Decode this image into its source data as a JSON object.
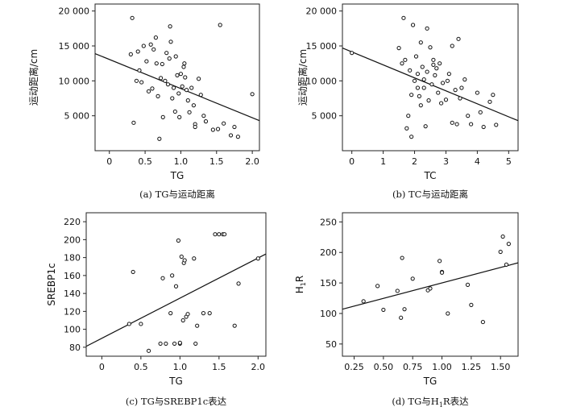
{
  "chart_data": [
    {
      "id": "a",
      "type": "scatter",
      "caption": "(a)  TG与运动距离",
      "xlabel": "TG",
      "ylabel": "运动距离/cm",
      "xlim": [
        -0.2,
        2.1
      ],
      "ylim": [
        0,
        21000
      ],
      "xticks": [
        0,
        0.5,
        1.0,
        1.5,
        2.0
      ],
      "xtick_labels": [
        "0",
        "0.5",
        "1.0",
        "1.5",
        "2.0"
      ],
      "yticks": [
        5000,
        10000,
        15000,
        20000
      ],
      "ytick_labels": [
        "5 000",
        "10 000",
        "15 000",
        "20 000"
      ],
      "grid": false,
      "points": [
        [
          0.32,
          19000
        ],
        [
          0.34,
          4000
        ],
        [
          0.3,
          13800
        ],
        [
          0.38,
          10000
        ],
        [
          0.42,
          11500
        ],
        [
          0.45,
          9800
        ],
        [
          0.4,
          14200
        ],
        [
          0.48,
          15000
        ],
        [
          0.52,
          12800
        ],
        [
          0.55,
          8500
        ],
        [
          0.58,
          15200
        ],
        [
          0.6,
          8900
        ],
        [
          0.62,
          14500
        ],
        [
          0.65,
          16200
        ],
        [
          0.66,
          12500
        ],
        [
          0.68,
          7800
        ],
        [
          0.7,
          1700
        ],
        [
          0.72,
          10400
        ],
        [
          0.74,
          12400
        ],
        [
          0.75,
          4800
        ],
        [
          0.78,
          10000
        ],
        [
          0.8,
          14000
        ],
        [
          0.82,
          9500
        ],
        [
          0.84,
          13200
        ],
        [
          0.85,
          17800
        ],
        [
          0.86,
          15600
        ],
        [
          0.88,
          7500
        ],
        [
          0.9,
          9000
        ],
        [
          0.92,
          5600
        ],
        [
          0.93,
          13500
        ],
        [
          0.95,
          10800
        ],
        [
          0.97,
          8200
        ],
        [
          0.98,
          4800
        ],
        [
          1.0,
          11000
        ],
        [
          1.02,
          9200
        ],
        [
          1.04,
          12000
        ],
        [
          1.05,
          12500
        ],
        [
          1.06,
          10500
        ],
        [
          1.08,
          8700
        ],
        [
          1.1,
          7200
        ],
        [
          1.12,
          5500
        ],
        [
          1.15,
          9000
        ],
        [
          1.18,
          6500
        ],
        [
          1.2,
          3800
        ],
        [
          1.2,
          3400
        ],
        [
          1.25,
          10300
        ],
        [
          1.28,
          8000
        ],
        [
          1.32,
          5000
        ],
        [
          1.35,
          4200
        ],
        [
          1.45,
          3000
        ],
        [
          1.52,
          3100
        ],
        [
          1.55,
          18000
        ],
        [
          1.6,
          3900
        ],
        [
          1.7,
          2200
        ],
        [
          1.75,
          3400
        ],
        [
          1.8,
          2000
        ],
        [
          2.0,
          8100
        ]
      ],
      "fit": {
        "x": [
          -0.2,
          2.1
        ],
        "y": [
          13900,
          4300
        ]
      }
    },
    {
      "id": "b",
      "type": "scatter",
      "caption": "(b)  TC与运动距离",
      "xlabel": "TC",
      "ylabel": "运动距离/cm",
      "xlim": [
        -0.3,
        5.3
      ],
      "ylim": [
        0,
        21000
      ],
      "xticks": [
        0,
        1,
        2,
        3,
        4,
        5
      ],
      "xtick_labels": [
        "0",
        "1",
        "2",
        "3",
        "4",
        "5"
      ],
      "yticks": [
        5000,
        10000,
        15000,
        20000
      ],
      "ytick_labels": [
        "5 000",
        "10 000",
        "15 000",
        "20 000"
      ],
      "grid": false,
      "points": [
        [
          0.0,
          14000
        ],
        [
          1.5,
          14700
        ],
        [
          1.6,
          12500
        ],
        [
          1.65,
          19000
        ],
        [
          1.7,
          13000
        ],
        [
          1.75,
          3200
        ],
        [
          1.8,
          5000
        ],
        [
          1.85,
          11500
        ],
        [
          1.9,
          2000
        ],
        [
          1.9,
          8000
        ],
        [
          1.95,
          18000
        ],
        [
          2.0,
          10000
        ],
        [
          2.05,
          13500
        ],
        [
          2.1,
          11000
        ],
        [
          2.1,
          9000
        ],
        [
          2.15,
          7800
        ],
        [
          2.2,
          6500
        ],
        [
          2.2,
          15500
        ],
        [
          2.25,
          12000
        ],
        [
          2.3,
          9000
        ],
        [
          2.3,
          10200
        ],
        [
          2.35,
          3500
        ],
        [
          2.4,
          11300
        ],
        [
          2.4,
          17500
        ],
        [
          2.45,
          7200
        ],
        [
          2.5,
          14800
        ],
        [
          2.55,
          9500
        ],
        [
          2.6,
          12300
        ],
        [
          2.6,
          13000
        ],
        [
          2.65,
          10800
        ],
        [
          2.7,
          11800
        ],
        [
          2.75,
          8300
        ],
        [
          2.8,
          12500
        ],
        [
          2.85,
          6800
        ],
        [
          2.9,
          9700
        ],
        [
          3.0,
          7300
        ],
        [
          3.05,
          10000
        ],
        [
          3.1,
          11000
        ],
        [
          3.2,
          4000
        ],
        [
          3.2,
          15000
        ],
        [
          3.3,
          8700
        ],
        [
          3.35,
          3800
        ],
        [
          3.4,
          16000
        ],
        [
          3.45,
          7500
        ],
        [
          3.5,
          9000
        ],
        [
          3.6,
          10200
        ],
        [
          3.7,
          5000
        ],
        [
          3.8,
          3800
        ],
        [
          4.0,
          8300
        ],
        [
          4.1,
          5500
        ],
        [
          4.2,
          3400
        ],
        [
          4.4,
          7000
        ],
        [
          4.5,
          8000
        ],
        [
          4.6,
          3700
        ]
      ],
      "fit": {
        "x": [
          -0.3,
          5.3
        ],
        "y": [
          14700,
          4300
        ]
      }
    },
    {
      "id": "c",
      "type": "scatter",
      "caption": "(c)  TG与SREBP1c表达",
      "xlabel": "TG",
      "ylabel": "SREBP1c",
      "xlim": [
        -0.2,
        2.1
      ],
      "ylim": [
        70,
        230
      ],
      "xticks": [
        0,
        0.5,
        1.0,
        1.5,
        2.0
      ],
      "xtick_labels": [
        "0",
        "0.5",
        "1.0",
        "1.5",
        "2.0"
      ],
      "yticks": [
        80,
        100,
        120,
        140,
        160,
        180,
        200,
        220
      ],
      "ytick_labels": [
        "80",
        "100",
        "120",
        "140",
        "160",
        "180",
        "200",
        "220"
      ],
      "grid": false,
      "points": [
        [
          0.35,
          106
        ],
        [
          0.4,
          164
        ],
        [
          0.5,
          106
        ],
        [
          0.6,
          76
        ],
        [
          0.75,
          84
        ],
        [
          0.78,
          157
        ],
        [
          0.82,
          84
        ],
        [
          0.88,
          118
        ],
        [
          0.9,
          160
        ],
        [
          0.93,
          84
        ],
        [
          0.95,
          148
        ],
        [
          0.98,
          199
        ],
        [
          1.0,
          84
        ],
        [
          1.0,
          85
        ],
        [
          1.02,
          181
        ],
        [
          1.04,
          110
        ],
        [
          1.05,
          174
        ],
        [
          1.06,
          177
        ],
        [
          1.08,
          114
        ],
        [
          1.1,
          117
        ],
        [
          1.18,
          179
        ],
        [
          1.2,
          84
        ],
        [
          1.22,
          104
        ],
        [
          1.3,
          118
        ],
        [
          1.38,
          118
        ],
        [
          1.45,
          206
        ],
        [
          1.5,
          206
        ],
        [
          1.55,
          206
        ],
        [
          1.57,
          206
        ],
        [
          1.7,
          104
        ],
        [
          1.75,
          151
        ],
        [
          2.0,
          179
        ]
      ],
      "fit": {
        "x": [
          -0.2,
          2.1
        ],
        "y": [
          81,
          184
        ]
      }
    },
    {
      "id": "d",
      "type": "scatter",
      "caption": "(d)  TG与H",
      "caption_sub": "1",
      "caption_tail": "R表达",
      "xlabel": "TG",
      "ylabel": "H",
      "ylabel_sub": "1",
      "ylabel_tail": "R",
      "xlim": [
        0.15,
        1.65
      ],
      "ylim": [
        30,
        265
      ],
      "xticks": [
        0.25,
        0.5,
        0.75,
        1.0,
        1.25,
        1.5
      ],
      "xtick_labels": [
        "0.25",
        "0.50",
        "0.75",
        "1.00",
        "1.25",
        "1.50"
      ],
      "yticks": [
        50,
        100,
        150,
        200,
        250
      ],
      "ytick_labels": [
        "50",
        "100",
        "150",
        "200",
        "250"
      ],
      "grid": false,
      "points": [
        [
          0.33,
          120
        ],
        [
          0.45,
          145
        ],
        [
          0.5,
          106
        ],
        [
          0.62,
          137
        ],
        [
          0.65,
          93
        ],
        [
          0.66,
          191
        ],
        [
          0.68,
          107
        ],
        [
          0.75,
          157
        ],
        [
          0.88,
          138
        ],
        [
          0.9,
          141
        ],
        [
          0.98,
          186
        ],
        [
          1.0,
          168
        ],
        [
          1.0,
          167
        ],
        [
          1.05,
          100
        ],
        [
          1.22,
          147
        ],
        [
          1.25,
          114
        ],
        [
          1.35,
          86
        ],
        [
          1.5,
          201
        ],
        [
          1.52,
          226
        ],
        [
          1.55,
          180
        ],
        [
          1.57,
          214
        ]
      ],
      "fit": {
        "x": [
          0.15,
          1.65
        ],
        "y": [
          107,
          183
        ]
      }
    }
  ]
}
